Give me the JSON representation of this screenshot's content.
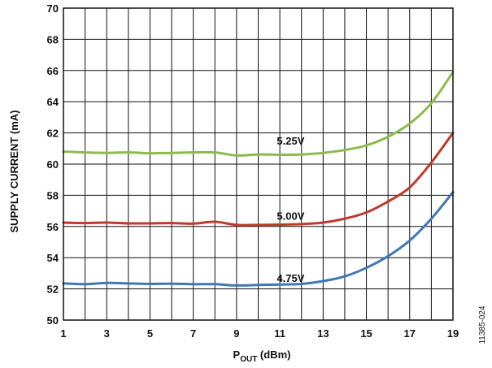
{
  "chart_data": {
    "type": "line",
    "title": "",
    "xlabel": {
      "main": "P",
      "sub": "OUT",
      "unit": " (dBm)"
    },
    "ylabel": "SUPPLY CURRENT (mA)",
    "xlim": [
      1,
      19
    ],
    "ylim": [
      50,
      70
    ],
    "xticks": [
      "1",
      "3",
      "5",
      "7",
      "9",
      "11",
      "13",
      "15",
      "17",
      "19"
    ],
    "yticks": [
      "50",
      "52",
      "54",
      "56",
      "58",
      "60",
      "62",
      "64",
      "66",
      "68",
      "70"
    ],
    "x_grid_step": 1,
    "grid": true,
    "figure_id": "11385-024",
    "series": [
      {
        "label": "5.25V",
        "color": "#8dbb4b",
        "label_at": [
          11.5,
          61.5
        ],
        "x": [
          1,
          2,
          3,
          4,
          5,
          6,
          7,
          8,
          9,
          10,
          11,
          12,
          13,
          14,
          15,
          16,
          17,
          18,
          19
        ],
        "y": [
          60.8,
          60.75,
          60.72,
          60.75,
          60.7,
          60.72,
          60.75,
          60.75,
          60.55,
          60.62,
          60.6,
          60.62,
          60.72,
          60.9,
          61.2,
          61.75,
          62.6,
          63.9,
          65.9
        ]
      },
      {
        "label": "5.00V",
        "color": "#c0392b",
        "label_at": [
          11.5,
          56.7
        ],
        "x": [
          1,
          2,
          3,
          4,
          5,
          6,
          7,
          8,
          9,
          10,
          11,
          12,
          13,
          14,
          15,
          16,
          17,
          18,
          19
        ],
        "y": [
          56.25,
          56.22,
          56.25,
          56.2,
          56.2,
          56.22,
          56.18,
          56.3,
          56.1,
          56.1,
          56.12,
          56.15,
          56.25,
          56.5,
          56.9,
          57.6,
          58.5,
          60.1,
          62.0
        ]
      },
      {
        "label": "4.75V",
        "color": "#3e78b6",
        "label_at": [
          11.5,
          52.7
        ],
        "x": [
          1,
          2,
          3,
          4,
          5,
          6,
          7,
          8,
          9,
          10,
          11,
          12,
          13,
          14,
          15,
          16,
          17,
          18,
          19
        ],
        "y": [
          52.35,
          52.3,
          52.38,
          52.35,
          52.32,
          52.33,
          52.3,
          52.3,
          52.22,
          52.25,
          52.28,
          52.32,
          52.5,
          52.8,
          53.35,
          54.1,
          55.1,
          56.5,
          58.2
        ]
      }
    ]
  }
}
